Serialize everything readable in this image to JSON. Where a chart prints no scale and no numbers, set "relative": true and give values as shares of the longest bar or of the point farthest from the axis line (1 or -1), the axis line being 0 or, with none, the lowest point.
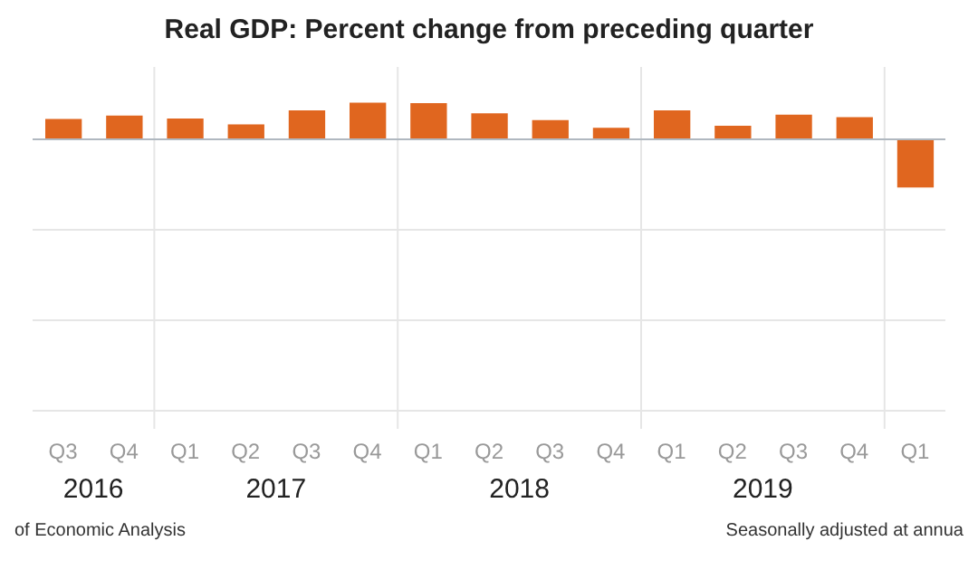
{
  "chart_data": {
    "type": "bar",
    "title": "Real GDP:  Percent change from preceding quarter",
    "relative": true,
    "grid": true,
    "categories": [
      "Q3",
      "Q4",
      "Q1",
      "Q2",
      "Q3",
      "Q4",
      "Q1",
      "Q2",
      "Q3",
      "Q4",
      "Q1",
      "Q2",
      "Q3",
      "Q4",
      "Q1"
    ],
    "values": [
      0.42,
      0.49,
      0.43,
      0.31,
      0.6,
      0.76,
      0.75,
      0.54,
      0.4,
      0.24,
      0.6,
      0.28,
      0.51,
      0.46,
      -1
    ],
    "color": "#e0661f",
    "annotations": [
      "2016",
      "2017",
      "2018",
      "2019",
      "of Economic Analysis",
      "Seasonally adjusted at annua"
    ]
  }
}
